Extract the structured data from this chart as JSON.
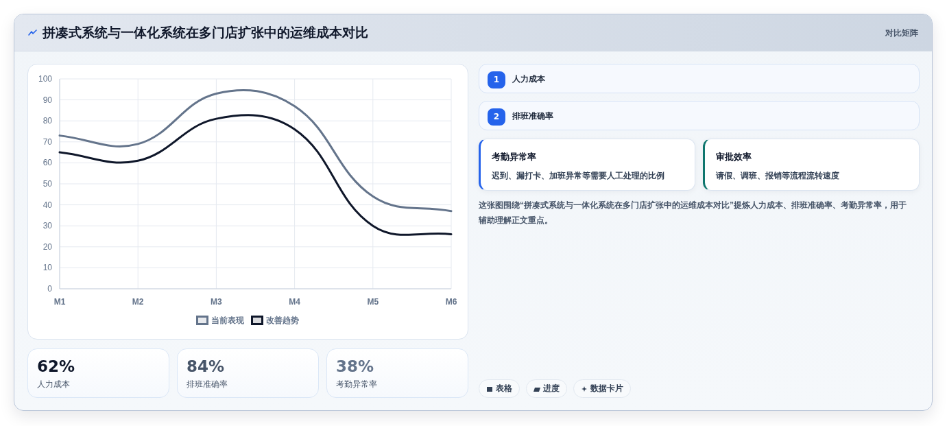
{
  "chart_data": [
    {
      "type": "other",
      "title": "拼凑式系统与一体化系统在多门店扩张中的运维成本对比",
      "subtitle": "对比矩阵"
    },
    {
      "type": "line",
      "categories": [
        "M1",
        "M2",
        "M3",
        "M4",
        "M5",
        "M6"
      ],
      "series": [
        {
          "name": "当前表现",
          "color": "#64748b",
          "values": [
            73,
            69,
            93,
            87,
            44,
            37
          ]
        },
        {
          "name": "改善趋势",
          "color": "#0f172a",
          "values": [
            65,
            61,
            81,
            76,
            30,
            26
          ]
        }
      ],
      "ylim": [
        0,
        100
      ],
      "yticks": [
        0,
        10,
        20,
        30,
        40,
        50,
        60,
        70,
        80,
        90,
        100
      ],
      "grid": true,
      "legend": "bottom",
      "line_style": "solid"
    },
    {
      "type": "other",
      "categories": [
        "人力成本",
        "排班准确率"
      ],
      "values": [
        1,
        2
      ],
      "data_labels": true
    },
    {
      "type": "other",
      "title": "考勤异常率",
      "subtitle": "迟到、漏打卡、加班异常等需要人工处理的比例"
    },
    {
      "type": "other",
      "title": "审批效率",
      "subtitle": "请假、调班、报销等流程流转速度"
    },
    {
      "type": "other",
      "annotations": [
        "这张图围绕“拼凑式系统与一体化系统在多门店扩张中的运维成本对比”提炼人力成本、排班准确率、考勤异常率，用于辅助理解正文重点。",
        "表格",
        "进度",
        "数据卡片"
      ]
    },
    {
      "type": "other",
      "categories": [
        "人力成本",
        "排班准确率",
        "考勤异常率"
      ],
      "values": [
        62,
        84,
        38
      ],
      "value_labels": [
        "62%",
        "84%",
        "38%"
      ]
    }
  ]
}
